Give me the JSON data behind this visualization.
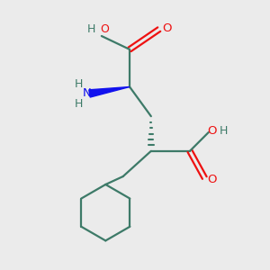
{
  "bg_color": "#ebebeb",
  "bond_color": "#3d7a68",
  "o_color": "#ee1111",
  "n_color": "#1111ee",
  "h_color": "#3d7a68",
  "lw": 1.6,
  "xlim": [
    0,
    10
  ],
  "ylim": [
    0,
    10
  ]
}
